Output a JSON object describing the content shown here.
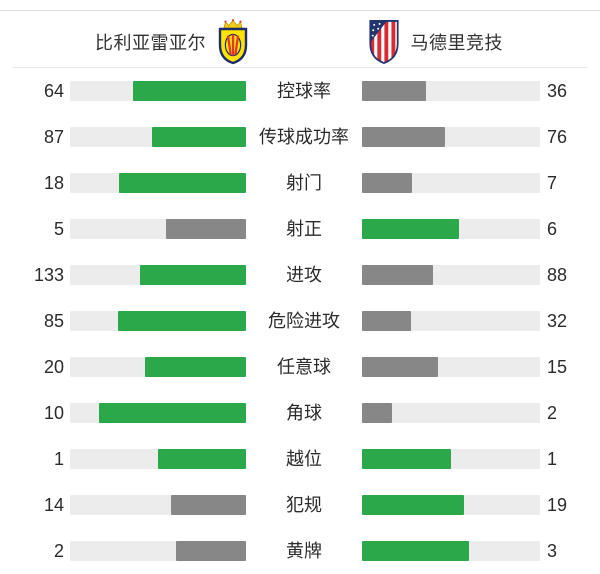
{
  "header": {
    "home_team": "比利亚雷亚尔",
    "away_team": "马德里竞技",
    "home_crest_icon": "villarreal-crest",
    "away_crest_icon": "atletico-madrid-crest"
  },
  "stats": [
    {
      "label": "控球率",
      "home": 64,
      "away": 36
    },
    {
      "label": "传球成功率",
      "home": 87,
      "away": 76
    },
    {
      "label": "射门",
      "home": 18,
      "away": 7
    },
    {
      "label": "射正",
      "home": 5,
      "away": 6
    },
    {
      "label": "进攻",
      "home": 133,
      "away": 88
    },
    {
      "label": "危险进攻",
      "home": 85,
      "away": 32
    },
    {
      "label": "任意球",
      "home": 20,
      "away": 15
    },
    {
      "label": "角球",
      "home": 10,
      "away": 2
    },
    {
      "label": "越位",
      "home": 1,
      "away": 1
    },
    {
      "label": "犯规",
      "home": 14,
      "away": 19
    },
    {
      "label": "黄牌",
      "home": 2,
      "away": 3
    }
  ],
  "colors": {
    "leading_bar": "#2aa84a",
    "trailing_bar": "#878787",
    "bar_track": "#ececec",
    "text": "#2b2b2b",
    "divider": "#e8e8e8",
    "top_line": "#dcdcdc"
  }
}
